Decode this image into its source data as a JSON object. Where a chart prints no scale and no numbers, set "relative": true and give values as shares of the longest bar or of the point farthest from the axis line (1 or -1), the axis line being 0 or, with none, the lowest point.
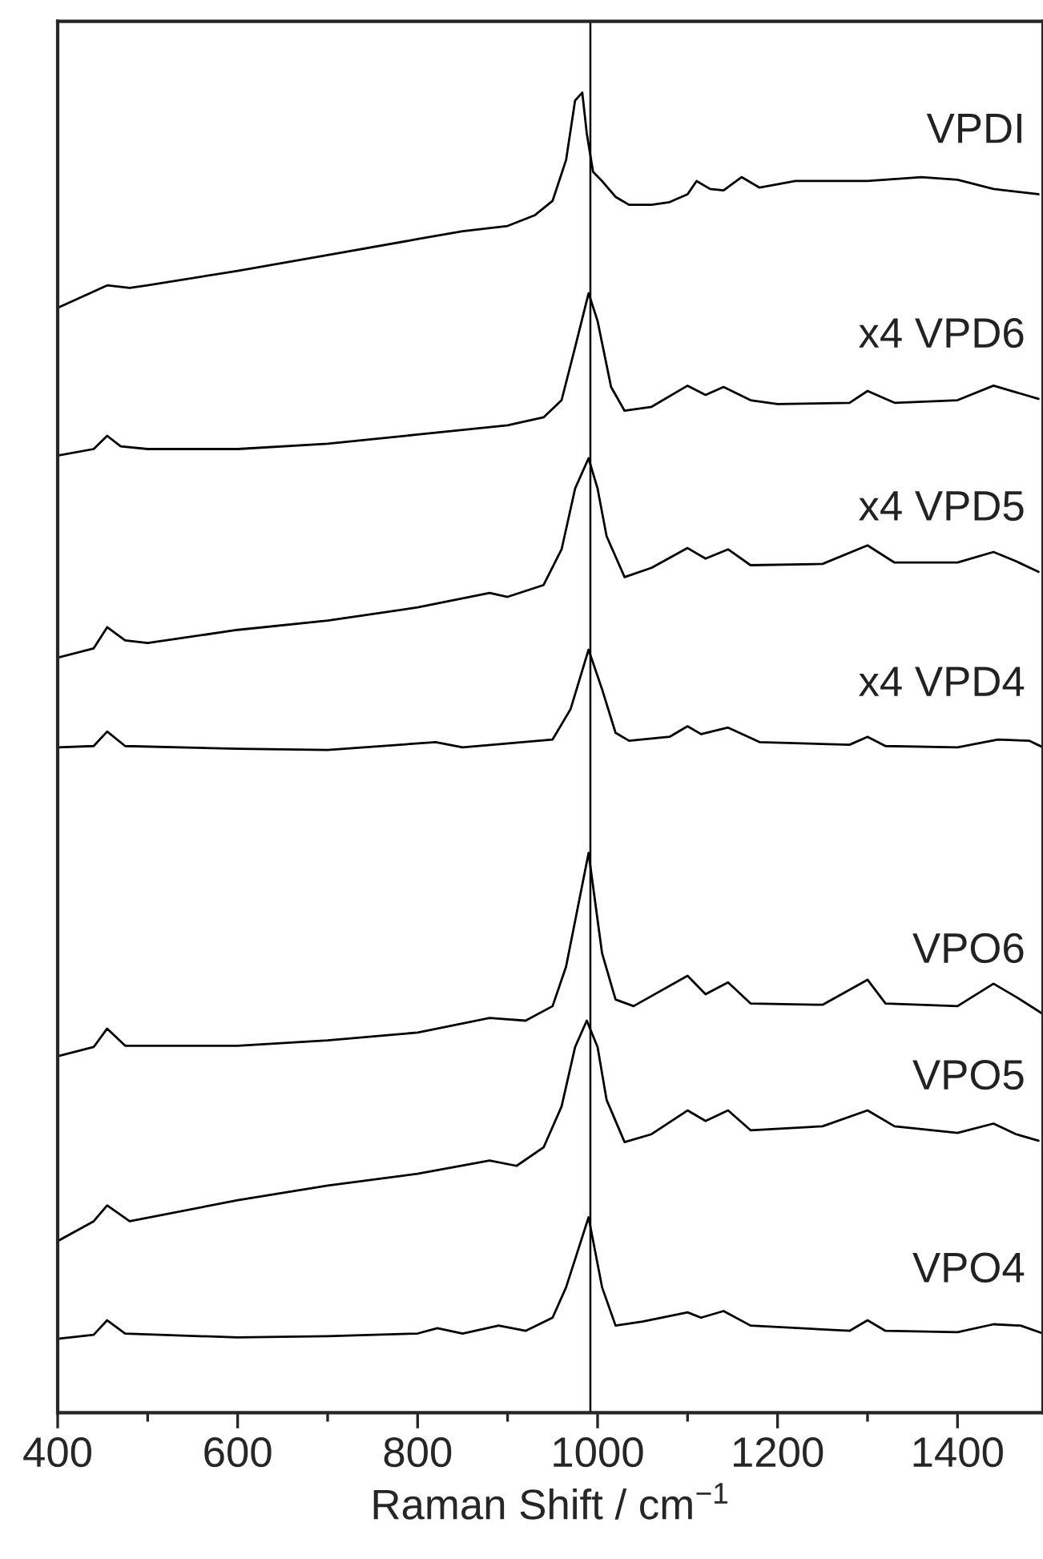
{
  "chart_data": {
    "type": "line",
    "relative": true,
    "xlabel": "Raman Shift / cm$^{−1}$",
    "xlim": [
      400,
      1495
    ],
    "xticks": [
      400,
      {
        "value": 500,
        "label": null
      },
      600,
      {
        "value": 700,
        "label": null
      },
      800,
      {
        "value": 900,
        "label": null
      },
      1000,
      {
        "value": 1100,
        "label": null
      },
      1200,
      {
        "value": 1300,
        "label": null
      },
      1400
    ],
    "grid": false,
    "legend": false,
    "tick_labels": "x",
    "marker": "none",
    "line_style": "solid",
    "ref_lines": [
      {
        "axis": "x",
        "value": 992,
        "color": "#000000",
        "line_style": "solid"
      }
    ],
    "series": [
      {
        "name": "VPDI",
        "color": "#000000",
        "x": [
          400,
          455,
          480,
          500,
          600,
          700,
          800,
          850,
          900,
          930,
          950,
          965,
          975,
          983,
          988,
          995,
          1005,
          1020,
          1035,
          1060,
          1080,
          1100,
          1110,
          1125,
          1140,
          1160,
          1180,
          1220,
          1300,
          1360,
          1400,
          1440,
          1490
        ],
        "values": [
          0.837,
          0.854,
          0.852,
          0.854,
          0.865,
          0.877,
          0.889,
          0.895,
          0.899,
          0.907,
          0.918,
          0.949,
          0.994,
          1.0,
          0.969,
          0.94,
          0.933,
          0.921,
          0.915,
          0.915,
          0.917,
          0.923,
          0.933,
          0.927,
          0.926,
          0.936,
          0.928,
          0.933,
          0.933,
          0.936,
          0.934,
          0.927,
          0.923
        ]
      },
      {
        "name": "x4 VPD6",
        "color": "#000000",
        "x": [
          400,
          440,
          455,
          470,
          500,
          600,
          700,
          800,
          900,
          940,
          960,
          975,
          990,
          1000,
          1015,
          1030,
          1060,
          1100,
          1120,
          1140,
          1170,
          1200,
          1280,
          1300,
          1330,
          1400,
          1440,
          1470,
          1490
        ],
        "values": [
          0.725,
          0.73,
          0.74,
          0.732,
          0.73,
          0.73,
          0.734,
          0.741,
          0.748,
          0.754,
          0.767,
          0.807,
          0.848,
          0.827,
          0.777,
          0.759,
          0.762,
          0.778,
          0.771,
          0.777,
          0.767,
          0.764,
          0.765,
          0.774,
          0.765,
          0.767,
          0.778,
          0.772,
          0.768
        ]
      },
      {
        "name": "x4 VPD5",
        "color": "#000000",
        "x": [
          400,
          440,
          455,
          475,
          500,
          600,
          700,
          800,
          880,
          900,
          940,
          960,
          975,
          990,
          1000,
          1010,
          1030,
          1060,
          1100,
          1120,
          1145,
          1170,
          1250,
          1300,
          1330,
          1400,
          1440,
          1465,
          1490
        ],
        "values": [
          0.572,
          0.579,
          0.595,
          0.585,
          0.583,
          0.593,
          0.6,
          0.61,
          0.621,
          0.618,
          0.627,
          0.654,
          0.7,
          0.723,
          0.7,
          0.664,
          0.633,
          0.64,
          0.655,
          0.647,
          0.654,
          0.642,
          0.643,
          0.657,
          0.644,
          0.644,
          0.652,
          0.645,
          0.637
        ]
      },
      {
        "name": "x4 VPD4",
        "color": "#000000",
        "x": [
          400,
          440,
          455,
          475,
          600,
          700,
          820,
          850,
          950,
          970,
          990,
          1005,
          1020,
          1035,
          1080,
          1100,
          1115,
          1145,
          1180,
          1280,
          1300,
          1320,
          1400,
          1445,
          1480,
          1495
        ],
        "values": [
          0.504,
          0.505,
          0.516,
          0.505,
          0.503,
          0.502,
          0.508,
          0.504,
          0.51,
          0.533,
          0.578,
          0.548,
          0.515,
          0.509,
          0.512,
          0.52,
          0.514,
          0.519,
          0.508,
          0.506,
          0.512,
          0.505,
          0.504,
          0.51,
          0.509,
          0.504
        ]
      },
      {
        "name": "VPO6",
        "color": "#000000",
        "x": [
          400,
          440,
          455,
          475,
          600,
          700,
          800,
          880,
          920,
          950,
          965,
          990,
          1005,
          1020,
          1040,
          1100,
          1120,
          1145,
          1170,
          1250,
          1300,
          1320,
          1400,
          1440,
          1465,
          1495
        ],
        "values": [
          0.27,
          0.277,
          0.291,
          0.278,
          0.278,
          0.282,
          0.288,
          0.299,
          0.297,
          0.308,
          0.338,
          0.424,
          0.348,
          0.313,
          0.308,
          0.331,
          0.317,
          0.326,
          0.31,
          0.309,
          0.328,
          0.31,
          0.308,
          0.325,
          0.315,
          0.302
        ]
      },
      {
        "name": "VPO5",
        "color": "#000000",
        "x": [
          400,
          440,
          455,
          480,
          600,
          700,
          800,
          880,
          910,
          940,
          960,
          975,
          988,
          1000,
          1010,
          1030,
          1060,
          1100,
          1120,
          1145,
          1170,
          1250,
          1300,
          1330,
          1400,
          1440,
          1465,
          1490
        ],
        "values": [
          0.13,
          0.145,
          0.157,
          0.145,
          0.161,
          0.172,
          0.181,
          0.191,
          0.187,
          0.201,
          0.232,
          0.277,
          0.297,
          0.277,
          0.237,
          0.205,
          0.211,
          0.229,
          0.221,
          0.229,
          0.214,
          0.217,
          0.229,
          0.217,
          0.212,
          0.219,
          0.211,
          0.206
        ]
      },
      {
        "name": "VPO4",
        "color": "#000000",
        "x": [
          400,
          440,
          455,
          475,
          600,
          700,
          800,
          822,
          850,
          890,
          920,
          950,
          965,
          990,
          1005,
          1020,
          1050,
          1100,
          1115,
          1140,
          1170,
          1280,
          1300,
          1320,
          1400,
          1440,
          1470,
          1495
        ],
        "values": [
          0.056,
          0.059,
          0.07,
          0.06,
          0.057,
          0.058,
          0.06,
          0.064,
          0.06,
          0.066,
          0.062,
          0.072,
          0.095,
          0.148,
          0.095,
          0.066,
          0.069,
          0.076,
          0.072,
          0.077,
          0.066,
          0.062,
          0.07,
          0.062,
          0.061,
          0.067,
          0.066,
          0.06
        ]
      }
    ]
  }
}
